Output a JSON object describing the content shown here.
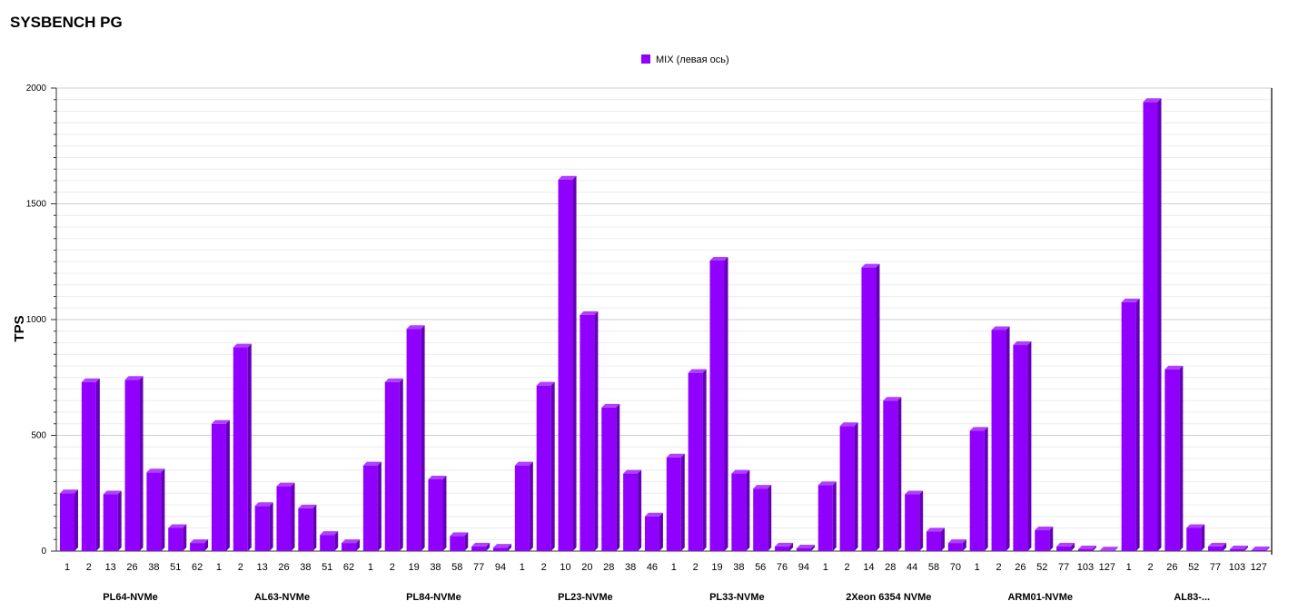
{
  "chart_data": {
    "type": "bar",
    "title": "SYSBENCH PG",
    "ylabel": "TPS",
    "xlabel": "",
    "ylim": [
      0,
      2000
    ],
    "yticks": [
      0,
      500,
      1000,
      1500,
      2000
    ],
    "grid": true,
    "legend_position": "top-center",
    "colors": {
      "bar": "#8f00ff",
      "bar_top": "#b040ff",
      "bar_side": "#6500b8",
      "grid": "#dddddd"
    },
    "series": [
      {
        "name": "MIX (левая ось)"
      }
    ],
    "groups": [
      {
        "name": "PL64-NVMe",
        "categories": [
          "1",
          "2",
          "13",
          "26",
          "38",
          "51",
          "62"
        ],
        "values": [
          250,
          730,
          245,
          740,
          340,
          100,
          35
        ]
      },
      {
        "name": "AL63-NVMe",
        "categories": [
          "1",
          "2",
          "13",
          "26",
          "38",
          "51",
          "62"
        ],
        "values": [
          550,
          880,
          195,
          280,
          185,
          70,
          35
        ]
      },
      {
        "name": "PL84-NVMe",
        "categories": [
          "1",
          "2",
          "19",
          "38",
          "58",
          "77",
          "94"
        ],
        "values": [
          370,
          730,
          960,
          310,
          65,
          20,
          15
        ]
      },
      {
        "name": "PL23-NVMe",
        "categories": [
          "1",
          "2",
          "10",
          "20",
          "28",
          "38",
          "46"
        ],
        "values": [
          370,
          715,
          1605,
          1020,
          620,
          335,
          150
        ]
      },
      {
        "name": "PL33-NVMe",
        "categories": [
          "1",
          "2",
          "19",
          "38",
          "56",
          "76",
          "94"
        ],
        "values": [
          405,
          770,
          1255,
          335,
          270,
          20,
          12
        ]
      },
      {
        "name": "2Xeon 6354 NVMe",
        "categories": [
          "1",
          "2",
          "14",
          "28",
          "44",
          "58",
          "70"
        ],
        "values": [
          285,
          540,
          1225,
          650,
          245,
          85,
          35
        ]
      },
      {
        "name": "ARM01-NVMe",
        "categories": [
          "1",
          "2",
          "26",
          "52",
          "77",
          "103",
          "127"
        ],
        "values": [
          520,
          955,
          890,
          90,
          20,
          8,
          3
        ]
      },
      {
        "name": "AL83-...",
        "categories": [
          "1",
          "2",
          "26",
          "52",
          "77",
          "103",
          "127"
        ],
        "values": [
          1075,
          1940,
          785,
          100,
          20,
          8,
          4
        ]
      }
    ]
  }
}
